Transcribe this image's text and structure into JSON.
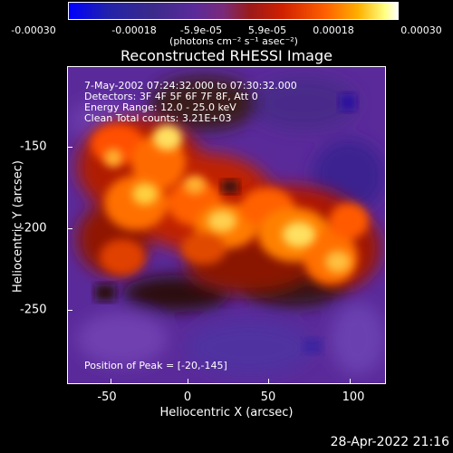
{
  "colorbar": {
    "ticks": [
      "-0.00030",
      "-0.00018",
      "-5.9e-05",
      "5.9e-05",
      "0.00018",
      "0.00030"
    ],
    "unit": "(photons cm⁻² s⁻¹ asec⁻²)"
  },
  "plot": {
    "title": "Reconstructed RHESSI Image",
    "info": {
      "time": "7-May-2002 07:24:32.000 to 07:30:32.000",
      "detectors": "Detectors: 3F 4F 5F 6F 7F 8F, Att 0",
      "energy": "Energy Range: 12.0 - 25.0 keV",
      "clean": "Clean     Total counts: 3.21E+03",
      "peak": "Position of Peak = [-20,-145]"
    },
    "xlabel": "Heliocentric X (arcsec)",
    "ylabel": "Heliocentric Y (arcsec)",
    "xticks": [
      "-50",
      "0",
      "50",
      "100"
    ],
    "yticks": [
      "-150",
      "-200",
      "-250"
    ]
  },
  "footer": {
    "timestamp": "28-Apr-2022 21:16"
  },
  "colors": {
    "background": "#000000",
    "low": "#5a2a9a",
    "high": "#ffff80"
  }
}
